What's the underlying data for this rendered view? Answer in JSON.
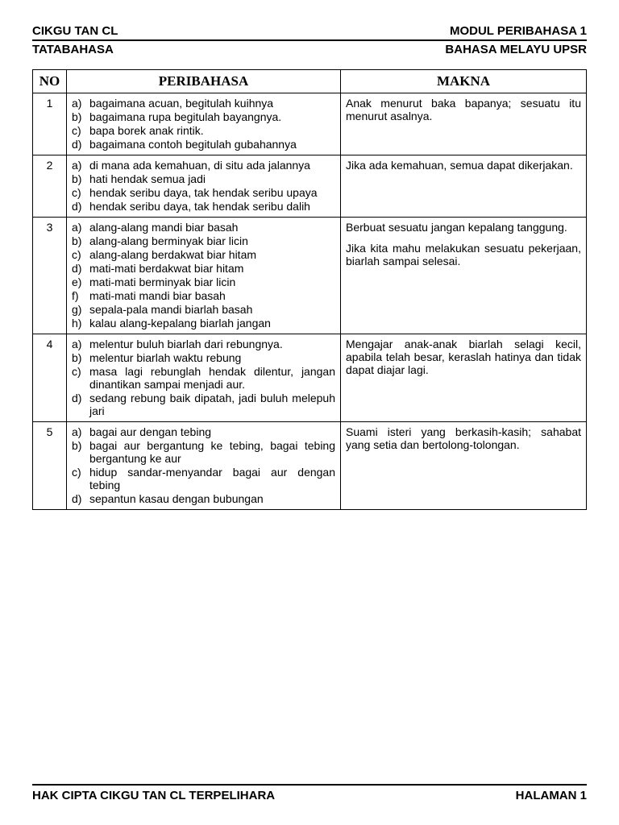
{
  "header": {
    "top_left": "CIKGU TAN CL",
    "top_right": "MODUL PERIBAHASA 1",
    "sub_left": "TATABAHASA",
    "sub_right": "BAHASA MELAYU UPSR"
  },
  "table": {
    "columns": {
      "no": "NO",
      "peribahasa": "PERIBAHASA",
      "makna": "MAKNA"
    },
    "rows": [
      {
        "no": "1",
        "items": [
          "bagaimana acuan, begitulah kuihnya",
          "bagaimana rupa begitulah bayangnya.",
          "bapa borek anak rintik.",
          "bagaimana contoh begitulah gubahannya"
        ],
        "makna": [
          "Anak menurut baka bapanya; sesuatu itu menurut asalnya."
        ]
      },
      {
        "no": "2",
        "items": [
          "di mana ada kemahuan, di situ ada jalannya",
          "hati hendak semua jadi",
          "hendak seribu daya, tak hendak seribu upaya",
          "hendak seribu daya, tak hendak seribu dalih"
        ],
        "makna": [
          "Jika ada kemahuan, semua dapat dikerjakan."
        ]
      },
      {
        "no": "3",
        "items": [
          "alang-alang mandi biar basah",
          "alang-alang berminyak biar licin",
          "alang-alang berdakwat biar hitam",
          "mati-mati berdakwat biar hitam",
          "mati-mati berminyak biar licin",
          "mati-mati mandi biar basah",
          "sepala-pala mandi biarlah basah",
          "kalau alang-kepalang biarlah jangan"
        ],
        "makna": [
          "Berbuat sesuatu jangan kepalang tanggung.",
          "Jika kita mahu melakukan sesuatu pekerjaan, biarlah sampai selesai."
        ]
      },
      {
        "no": "4",
        "items": [
          "melentur buluh biarlah dari rebungnya.",
          "melentur biarlah waktu rebung",
          "masa lagi rebunglah hendak dilentur, jangan dinantikan sampai menjadi aur.",
          "sedang rebung baik dipatah, jadi buluh melepuh jari"
        ],
        "makna": [
          "Mengajar anak-anak biarlah selagi kecil, apabila telah besar, keraslah hatinya dan tidak dapat diajar lagi."
        ]
      },
      {
        "no": "5",
        "items": [
          "bagai aur dengan tebing",
          "bagai aur bergantung ke tebing, bagai tebing bergantung ke aur",
          "hidup sandar-menyandar bagai aur dengan tebing",
          "sepantun kasau dengan bubungan"
        ],
        "makna": [
          "Suami isteri yang berkasih-kasih; sahabat yang setia dan bertolong-tolongan."
        ]
      }
    ]
  },
  "footer": {
    "left": "HAK CIPTA CIKGU TAN CL TERPELIHARA",
    "right": "HALAMAN 1"
  },
  "labels": [
    "a)",
    "b)",
    "c)",
    "d)",
    "e)",
    "f)",
    "g)",
    "h)"
  ]
}
